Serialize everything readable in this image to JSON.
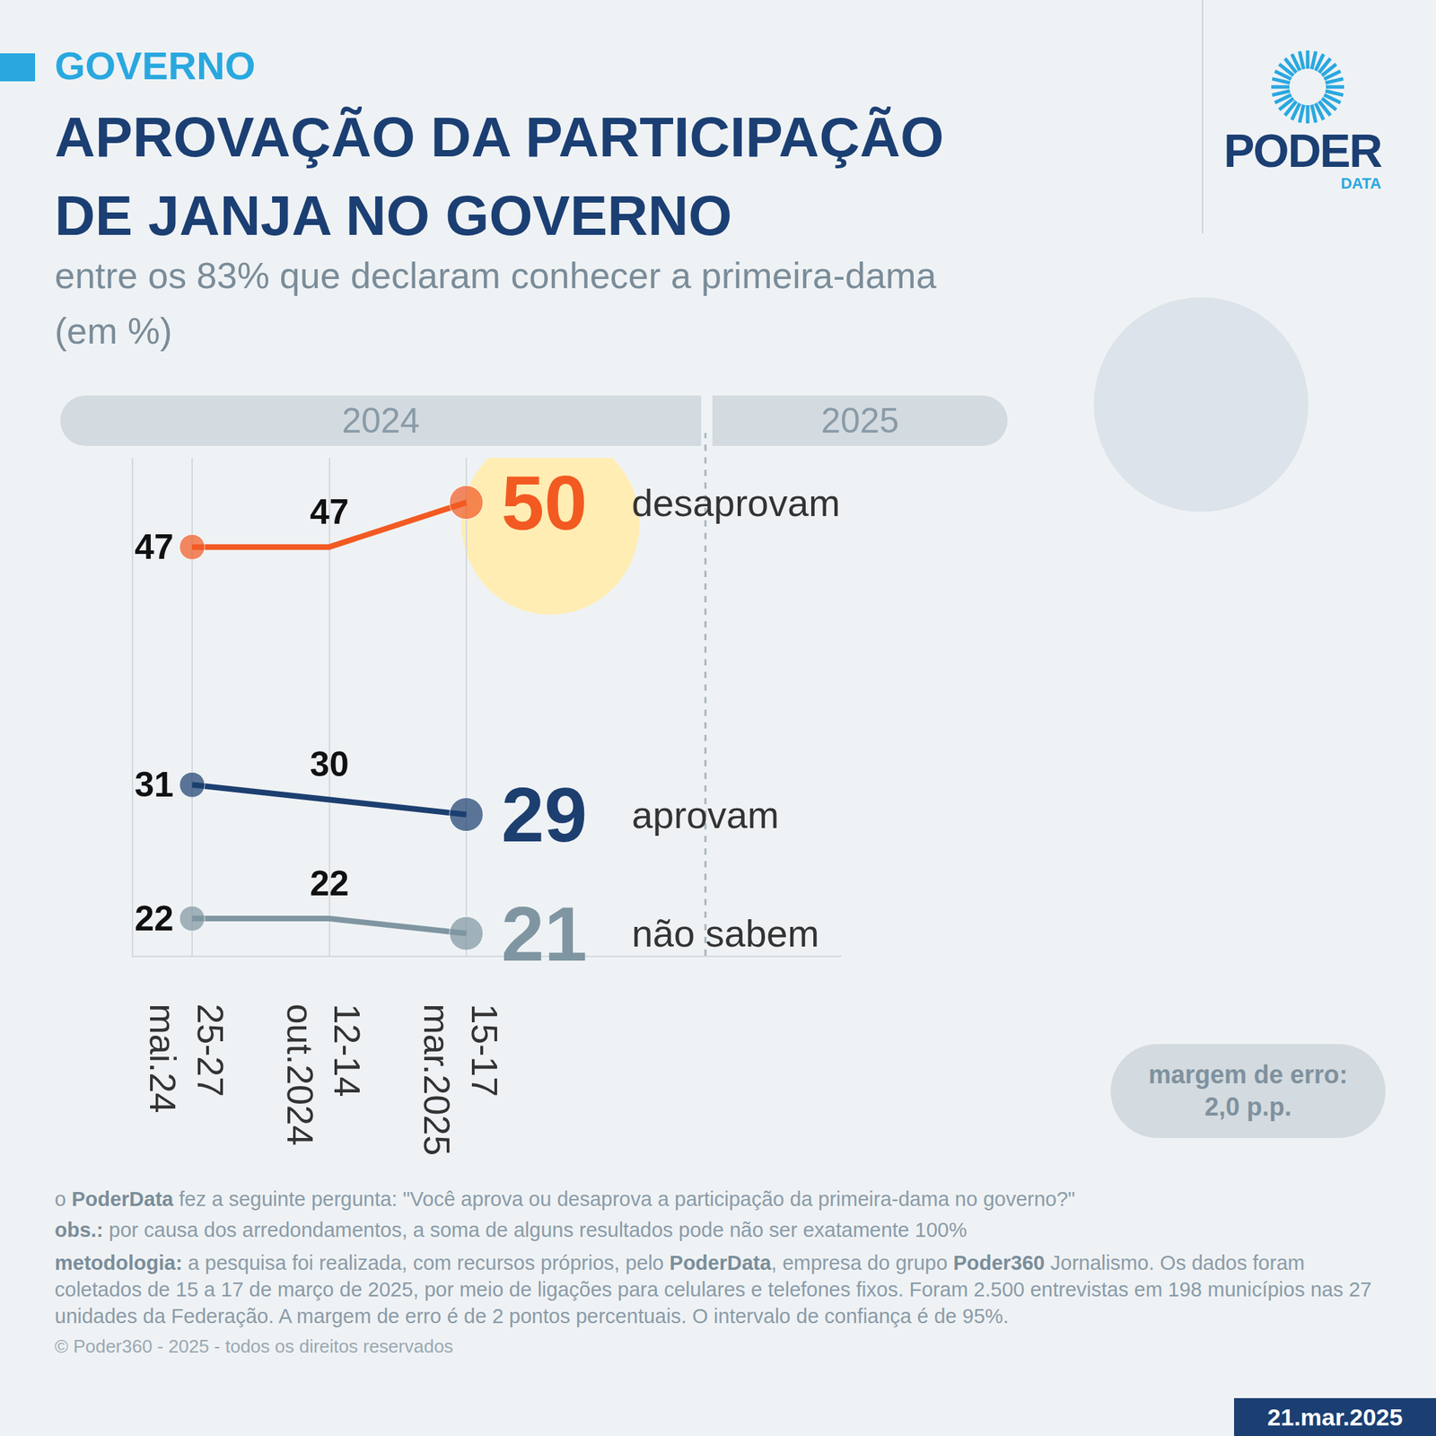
{
  "section": "GOVERNO",
  "brand": {
    "name": "PODER",
    "sub": "DATA"
  },
  "chart_data": {
    "type": "line",
    "title": [
      "APROVAÇÃO DA PARTICIPAÇÃO",
      "DE JANJA NO GOVERNO"
    ],
    "subtitle": [
      "entre os 83% que declaram conhecer a primeira-dama",
      "(em %)"
    ],
    "periods": [
      "2024",
      "2025"
    ],
    "categories": [
      "25-27 mai.24",
      "12-14 out.2024",
      "15-17 mar.2025"
    ],
    "series": [
      {
        "name": "desaprovam",
        "color": "#F25A22",
        "values": [
          47,
          47,
          50
        ]
      },
      {
        "name": "aprovam",
        "color": "#1C3F70",
        "values": [
          31,
          30,
          29
        ]
      },
      {
        "name": "não sabem",
        "color": "#7F96A2",
        "values": [
          22,
          22,
          21
        ]
      }
    ],
    "ylim": [
      19.5,
      53
    ],
    "grid": true,
    "tick_labels": "x",
    "data_labels": true,
    "marker": "circle",
    "note": [
      "margem de erro:",
      "2,0 p.p."
    ]
  },
  "footer": {
    "question": [
      {
        "text": "o "
      },
      {
        "text": "PoderData",
        "bold": true
      },
      {
        "text": " fez a seguinte pergunta: \"Você aprova ou desaprova a participação da primeira-dama no governo?\""
      }
    ],
    "obs": [
      {
        "text": "obs.:",
        "bold": true
      },
      {
        "text": " por causa dos arredondamentos, a soma de alguns resultados pode não ser exatamente 100%"
      }
    ],
    "methodology": [
      {
        "text": "metodologia:",
        "bold": true
      },
      {
        "text": " a pesquisa foi realizada, com recursos próprios, pelo "
      },
      {
        "text": "PoderData",
        "bold": true
      },
      {
        "text": ", empresa do grupo "
      },
      {
        "text": "Poder360",
        "bold": true
      },
      {
        "text": " Jornalismo. Os dados foram coletados de 15 a 17 de março de 2025, por meio de ligações para celulares e telefones fixos. Foram 2.500 entrevistas em 198 municípios nas 27 unidades da Federação. A margem de erro é de 2 pontos percentuais. O intervalo de confiança é de 95%."
      }
    ],
    "copyright": "© Poder360 - 2025 - todos os direitos reservados"
  },
  "date": "21.mar.2025"
}
